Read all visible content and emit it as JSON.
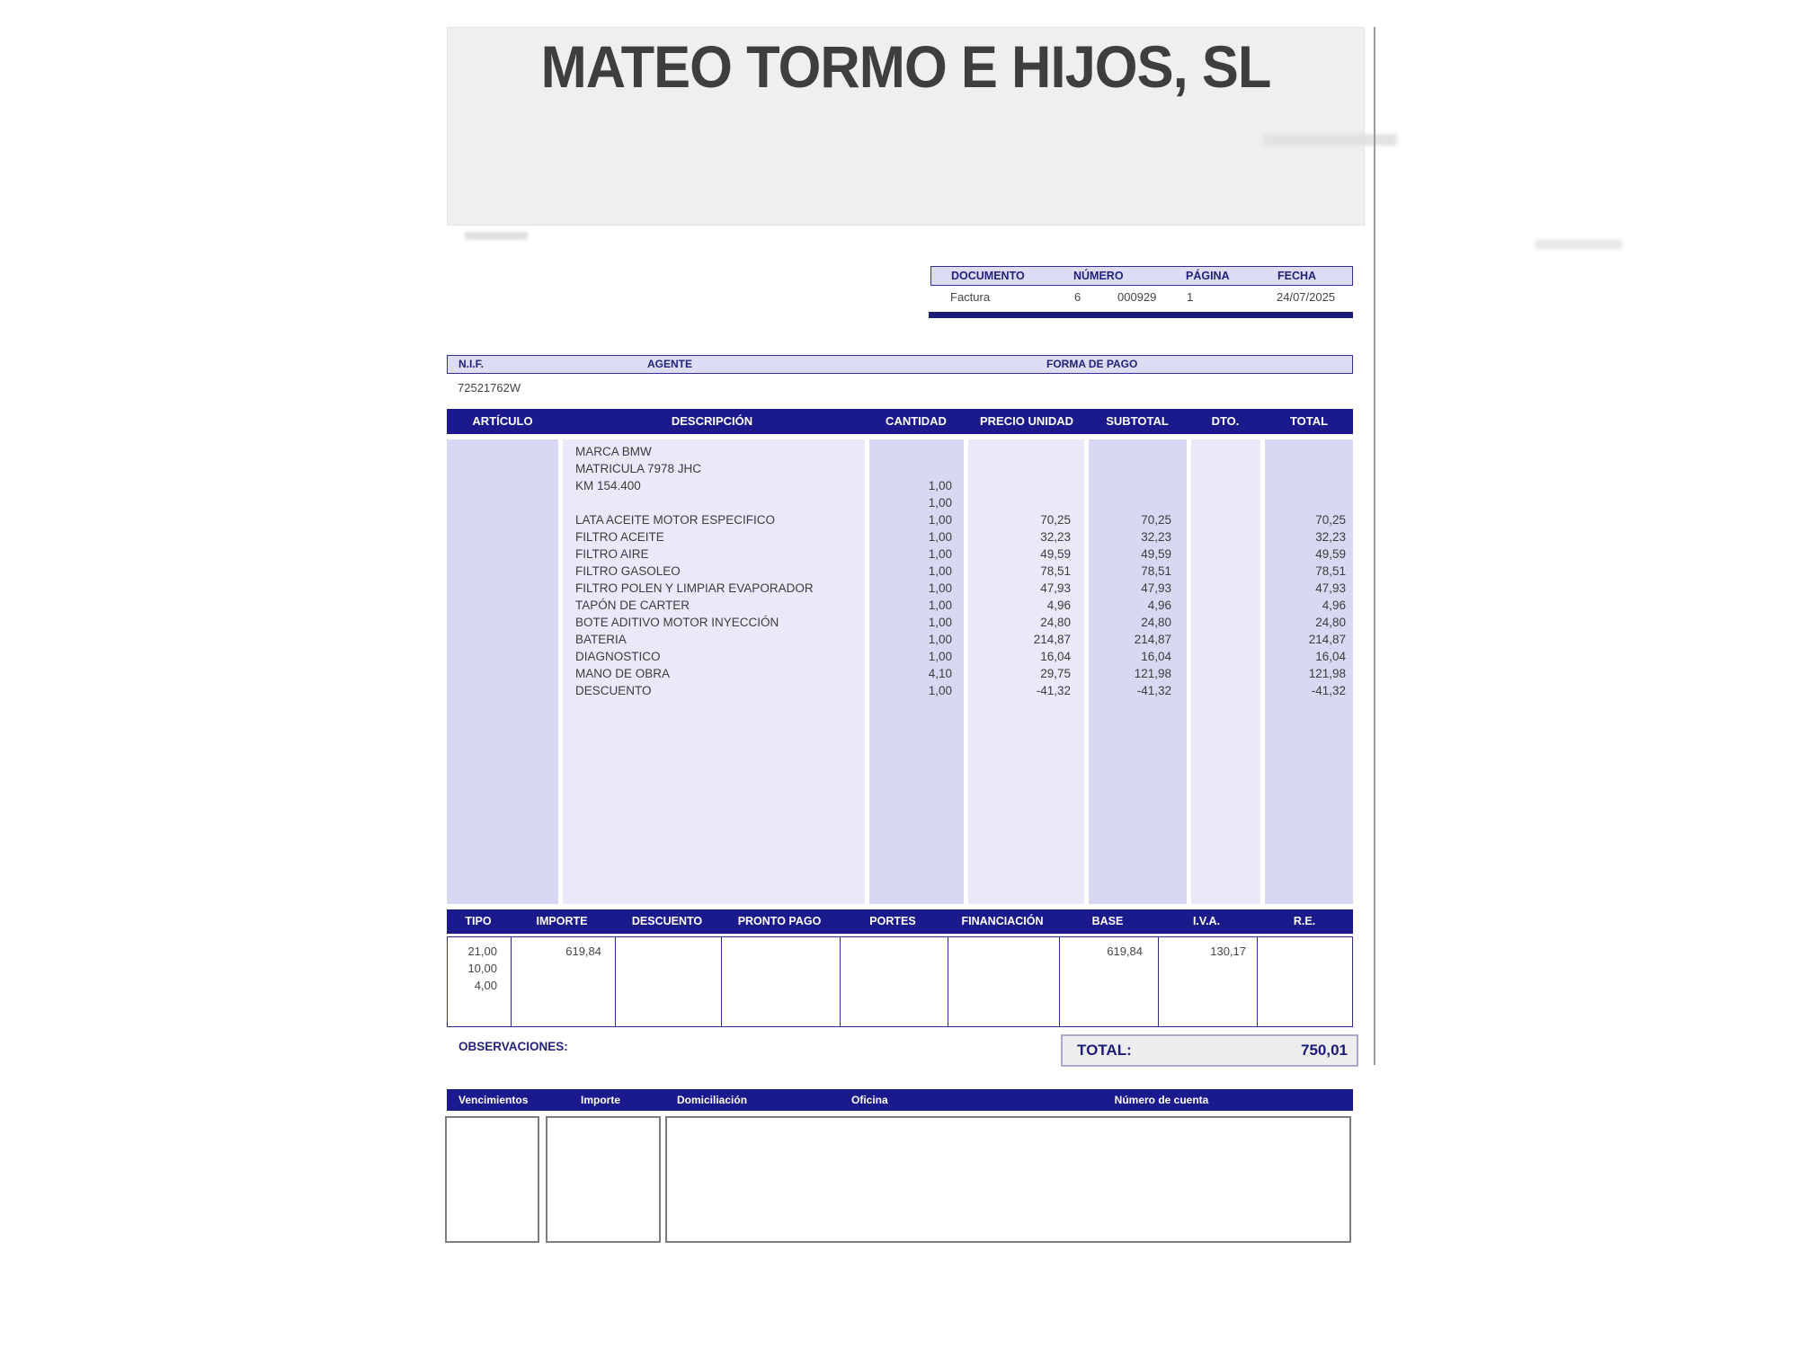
{
  "header": {
    "company_name": "MATEO TORMO E HIJOS, SL"
  },
  "document_info": {
    "columns": [
      "DOCUMENTO",
      "NÚMERO",
      "PÁGINA",
      "FECHA"
    ],
    "document_type": "Factura",
    "series": "6",
    "number": "000929",
    "page": "1",
    "date": "24/07/2025"
  },
  "party_info": {
    "nif_label": "N.I.F.",
    "agente_label": "AGENTE",
    "forma_pago_label": "FORMA DE PAGO",
    "nif_value": "72521762W"
  },
  "items_table": {
    "columns": [
      "ARTÍCULO",
      "DESCRIPCIÓN",
      "CANTIDAD",
      "PRECIO UNIDAD",
      "SUBTOTAL",
      "DTO.",
      "TOTAL"
    ],
    "rows": [
      {
        "articulo": "",
        "descripcion": "MARCA BMW",
        "cantidad": "",
        "precio_unidad": "",
        "subtotal": "",
        "dto": "",
        "total": ""
      },
      {
        "articulo": "",
        "descripcion": "MATRICULA 7978 JHC",
        "cantidad": "",
        "precio_unidad": "",
        "subtotal": "",
        "dto": "",
        "total": ""
      },
      {
        "articulo": "",
        "descripcion": "KM 154.400",
        "cantidad": "1,00",
        "precio_unidad": "",
        "subtotal": "",
        "dto": "",
        "total": ""
      },
      {
        "articulo": "",
        "descripcion": "",
        "cantidad": "1,00",
        "precio_unidad": "",
        "subtotal": "",
        "dto": "",
        "total": ""
      },
      {
        "articulo": "",
        "descripcion": "LATA ACEITE MOTOR ESPECIFICO",
        "cantidad": "1,00",
        "precio_unidad": "70,25",
        "subtotal": "70,25",
        "dto": "",
        "total": "70,25"
      },
      {
        "articulo": "",
        "descripcion": "FILTRO ACEITE",
        "cantidad": "1,00",
        "precio_unidad": "32,23",
        "subtotal": "32,23",
        "dto": "",
        "total": "32,23"
      },
      {
        "articulo": "",
        "descripcion": "FILTRO AIRE",
        "cantidad": "1,00",
        "precio_unidad": "49,59",
        "subtotal": "49,59",
        "dto": "",
        "total": "49,59"
      },
      {
        "articulo": "",
        "descripcion": "FILTRO GASOLEO",
        "cantidad": "1,00",
        "precio_unidad": "78,51",
        "subtotal": "78,51",
        "dto": "",
        "total": "78,51"
      },
      {
        "articulo": "",
        "descripcion": "FILTRO POLEN Y LIMPIAR EVAPORADOR",
        "cantidad": "1,00",
        "precio_unidad": "47,93",
        "subtotal": "47,93",
        "dto": "",
        "total": "47,93"
      },
      {
        "articulo": "",
        "descripcion": "TAPÓN DE CARTER",
        "cantidad": "1,00",
        "precio_unidad": "4,96",
        "subtotal": "4,96",
        "dto": "",
        "total": "4,96"
      },
      {
        "articulo": "",
        "descripcion": "BOTE ADITIVO MOTOR INYECCIÓN",
        "cantidad": "1,00",
        "precio_unidad": "24,80",
        "subtotal": "24,80",
        "dto": "",
        "total": "24,80"
      },
      {
        "articulo": "",
        "descripcion": "BATERIA",
        "cantidad": "1,00",
        "precio_unidad": "214,87",
        "subtotal": "214,87",
        "dto": "",
        "total": "214,87"
      },
      {
        "articulo": "",
        "descripcion": "DIAGNOSTICO",
        "cantidad": "1,00",
        "precio_unidad": "16,04",
        "subtotal": "16,04",
        "dto": "",
        "total": "16,04"
      },
      {
        "articulo": "",
        "descripcion": "MANO DE OBRA",
        "cantidad": "4,10",
        "precio_unidad": "29,75",
        "subtotal": "121,98",
        "dto": "",
        "total": "121,98"
      },
      {
        "articulo": "",
        "descripcion": "DESCUENTO",
        "cantidad": "1,00",
        "precio_unidad": "-41,32",
        "subtotal": "-41,32",
        "dto": "",
        "total": "-41,32"
      }
    ]
  },
  "tax_table": {
    "columns": [
      "TIPO",
      "IMPORTE",
      "DESCUENTO",
      "PRONTO PAGO",
      "PORTES",
      "FINANCIACIÓN",
      "BASE",
      "I.V.A.",
      "R.E."
    ],
    "rows": [
      {
        "tipo": "21,00",
        "importe": "619,84",
        "descuento": "",
        "pronto_pago": "",
        "portes": "",
        "financiacion": "",
        "base": "619,84",
        "iva": "130,17",
        "re": ""
      },
      {
        "tipo": "10,00",
        "importe": "",
        "descuento": "",
        "pronto_pago": "",
        "portes": "",
        "financiacion": "",
        "base": "",
        "iva": "",
        "re": ""
      },
      {
        "tipo": "4,00",
        "importe": "",
        "descuento": "",
        "pronto_pago": "",
        "portes": "",
        "financiacion": "",
        "base": "",
        "iva": "",
        "re": ""
      }
    ]
  },
  "totals": {
    "observaciones_label": "OBSERVACIONES:",
    "total_label": "TOTAL:",
    "total_value": "750,01"
  },
  "payment_table": {
    "columns": [
      "Vencimientos",
      "Importe",
      "Domiciliación",
      "Oficina",
      "Número de cuenta"
    ]
  },
  "colors": {
    "navy": "#1a1a8c",
    "header_row_bg": "#dcdcf5",
    "column_dark": "#d8d8f3",
    "column_light": "#e9e9f9",
    "brand_box_bg": "#efefef"
  }
}
